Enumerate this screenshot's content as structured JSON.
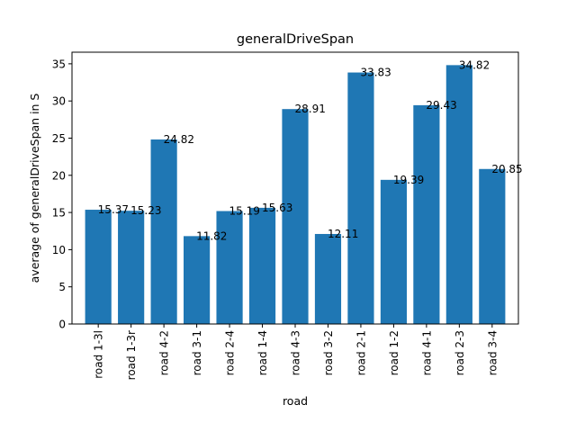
{
  "chart_data": {
    "type": "bar",
    "title": "generalDriveSpan",
    "xlabel": "road",
    "ylabel": "average of generalDriveSpan in S",
    "categories": [
      "road 1-3l",
      "road 1-3r",
      "road 4-2",
      "road 3-1",
      "road 2-4",
      "road 1-4",
      "road 4-3",
      "road 3-2",
      "road 2-1",
      "road 1-2",
      "road 4-1",
      "road 2-3",
      "road 3-4"
    ],
    "values": [
      15.37,
      15.23,
      24.82,
      11.82,
      15.19,
      15.63,
      28.91,
      12.11,
      33.83,
      19.39,
      29.43,
      34.82,
      20.85
    ],
    "data_labels": [
      "15.37",
      "15.23",
      "24.82",
      "11.82",
      "15.19",
      "15.63",
      "28.91",
      "12.11",
      "33.83",
      "19.39",
      "29.43",
      "34.82",
      "20.85"
    ],
    "ylim": [
      0,
      36.56
    ],
    "yticks": [
      0,
      5,
      10,
      15,
      20,
      25,
      30,
      35
    ],
    "ytick_labels": [
      "0",
      "5",
      "10",
      "15",
      "20",
      "25",
      "30",
      "35"
    ],
    "bar_color": "#1f77b4",
    "grid": false,
    "legend": "none"
  }
}
